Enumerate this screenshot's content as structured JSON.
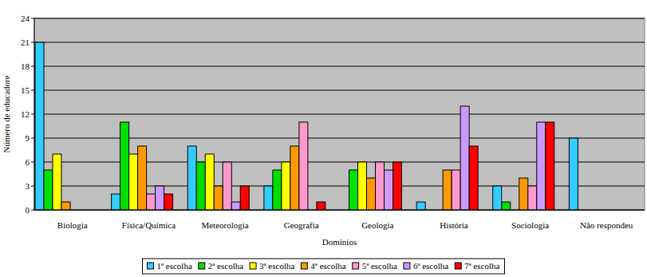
{
  "chart_data": {
    "type": "bar",
    "x_label": "Domínios",
    "y_label": "Número de educadore",
    "categories": [
      "Biologia",
      "Física/Química",
      "Meteorologia",
      "Geografia",
      "Geologia",
      "História",
      "Sociologia",
      "Não respondeu"
    ],
    "series": [
      {
        "name": "1ª escolha",
        "color": "#33CCFF",
        "values": [
          21,
          2,
          8,
          3,
          0,
          1,
          3,
          9
        ]
      },
      {
        "name": "2ª escolha",
        "color": "#00E000",
        "values": [
          5,
          11,
          6,
          5,
          5,
          0,
          1,
          0
        ]
      },
      {
        "name": "3ª escolha",
        "color": "#FFFF00",
        "values": [
          7,
          7,
          7,
          6,
          6,
          0,
          0,
          0
        ]
      },
      {
        "name": "4ª escolha",
        "color": "#FF9900",
        "values": [
          1,
          8,
          3,
          8,
          4,
          5,
          4,
          0
        ]
      },
      {
        "name": "5ª escolha",
        "color": "#FF99CC",
        "values": [
          0,
          2,
          6,
          11,
          6,
          5,
          3,
          0
        ]
      },
      {
        "name": "6ª escolha",
        "color": "#CC99FF",
        "values": [
          0,
          3,
          1,
          0,
          5,
          13,
          11,
          0
        ]
      },
      {
        "name": "7ª escolha",
        "color": "#FF0000",
        "values": [
          0,
          2,
          3,
          1,
          6,
          8,
          11,
          0
        ]
      }
    ],
    "ylim": [
      0,
      24
    ],
    "yticks": [
      0,
      3,
      6,
      9,
      12,
      15,
      18,
      21,
      24
    ],
    "grid": true,
    "legend": "bottom"
  }
}
